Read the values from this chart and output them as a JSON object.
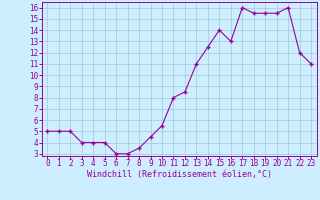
{
  "hours": [
    0,
    1,
    2,
    3,
    4,
    5,
    6,
    7,
    8,
    9,
    10,
    11,
    12,
    13,
    14,
    15,
    16,
    17,
    18,
    19,
    20,
    21,
    22,
    23
  ],
  "values": [
    5,
    5,
    5,
    4,
    4,
    4,
    3,
    3,
    3.5,
    4.5,
    5.5,
    8,
    8.5,
    11,
    12.5,
    14,
    13,
    16,
    15.5,
    15.5,
    15.5,
    16,
    12,
    11
  ],
  "line_color": "#990099",
  "marker_color": "#990099",
  "bg_color": "#cceeff",
  "grid_color": "#aaccdd",
  "xlabel": "Windchill (Refroidissement éolien,°C)",
  "ylim_min": 3,
  "ylim_max": 16.5,
  "xlim_min": -0.5,
  "xlim_max": 23.5,
  "yticks": [
    3,
    4,
    5,
    6,
    7,
    8,
    9,
    10,
    11,
    12,
    13,
    14,
    15,
    16
  ],
  "xticks": [
    0,
    1,
    2,
    3,
    4,
    5,
    6,
    7,
    8,
    9,
    10,
    11,
    12,
    13,
    14,
    15,
    16,
    17,
    18,
    19,
    20,
    21,
    22,
    23
  ],
  "tick_fontsize": 5.5,
  "label_fontsize": 6
}
